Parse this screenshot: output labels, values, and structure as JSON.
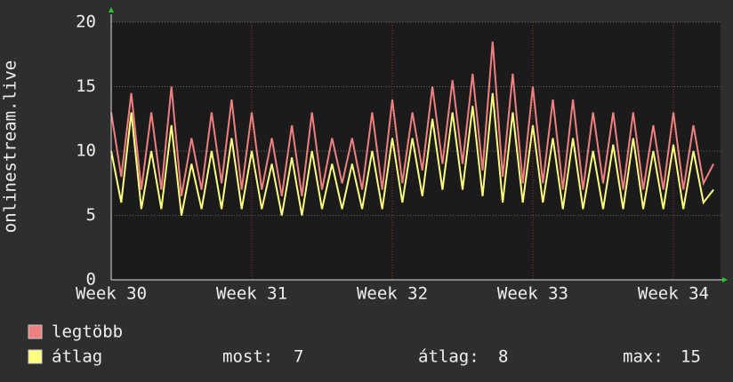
{
  "chart_data": {
    "type": "line",
    "y_label": "onlinestream.live",
    "x": [
      0,
      0.5,
      1,
      1.5,
      2,
      2.5,
      3,
      3.5,
      4,
      4.5,
      5,
      5.5,
      6,
      6.5,
      7,
      7.5,
      8,
      8.5,
      9,
      9.5,
      10,
      10.5,
      11,
      11.5,
      12,
      12.5,
      13,
      13.5,
      14,
      14.5,
      15,
      15.5,
      16,
      16.5,
      17,
      17.5,
      18,
      18.5,
      19,
      19.5,
      20,
      20.5,
      21,
      21.5,
      22,
      22.5,
      23,
      23.5,
      24,
      24.5,
      25,
      25.5,
      26,
      26.5,
      27,
      27.5,
      28,
      28.5,
      29,
      29.5,
      30
    ],
    "series": [
      {
        "name": "legtöbb",
        "color": "#f08080",
        "values": [
          13,
          8,
          14.5,
          7,
          13,
          7,
          15,
          6.5,
          11,
          7,
          13,
          7.5,
          14,
          7,
          13,
          7,
          11,
          6.5,
          12,
          6.5,
          13,
          7,
          11,
          7.5,
          11,
          7,
          13,
          7,
          14,
          7.5,
          13,
          8.5,
          15,
          9,
          15.5,
          9,
          16,
          8.5,
          18.5,
          8,
          16,
          7.5,
          15,
          7.5,
          14,
          7,
          14,
          7,
          13,
          7.5,
          13,
          7,
          13,
          7,
          12,
          7,
          13,
          7,
          12,
          7.5,
          9
        ]
      },
      {
        "name": "átlag",
        "color": "#ffff80",
        "values": [
          10,
          6,
          13,
          5.5,
          10,
          5.5,
          12,
          5,
          9,
          5.5,
          10,
          5.5,
          11,
          5.5,
          10,
          5.5,
          9,
          5,
          9.5,
          5,
          10,
          5.5,
          9,
          5.5,
          9,
          5.5,
          10,
          5.5,
          11,
          6,
          11,
          6.5,
          12.5,
          7,
          13,
          7,
          13.5,
          6.5,
          14.5,
          6,
          13,
          6,
          12,
          6,
          11,
          5.5,
          11,
          5.5,
          10,
          5.5,
          10.5,
          5.5,
          11,
          5.5,
          10,
          5.5,
          10.5,
          5.5,
          10,
          6,
          7
        ]
      }
    ],
    "xlim": [
      0,
      30.35
    ],
    "ylim": [
      0,
      20
    ],
    "xticks": [
      {
        "value": 0,
        "label": "Week 30"
      },
      {
        "value": 7,
        "label": "Week 31"
      },
      {
        "value": 14,
        "label": "Week 32"
      },
      {
        "value": 21,
        "label": "Week 33"
      },
      {
        "value": 28,
        "label": "Week 34"
      }
    ],
    "yticks": [
      0,
      5,
      10,
      15,
      20
    ],
    "grid": true,
    "stats": [
      {
        "label": "most:",
        "value": 7
      },
      {
        "label": "átlag:",
        "value": 8
      },
      {
        "label": "max:",
        "value": 15
      }
    ]
  }
}
